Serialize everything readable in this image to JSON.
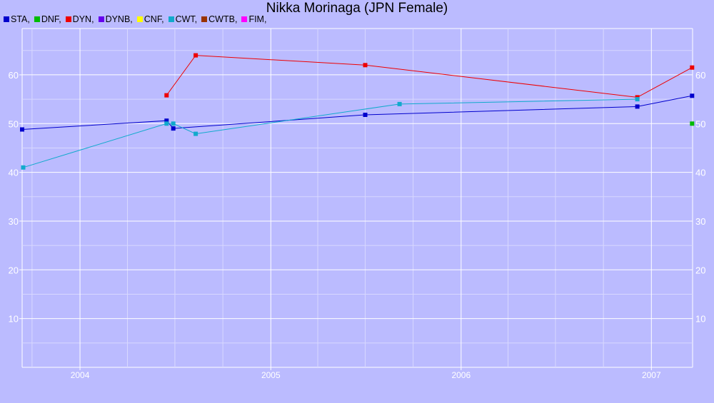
{
  "chart_data": {
    "type": "line",
    "title": "Nikka Morinaga (JPN Female)",
    "xlabel": "",
    "ylabel": "",
    "x_ticks": [
      "2004",
      "2005",
      "2006",
      "2007"
    ],
    "y_ticks": [
      10,
      20,
      30,
      40,
      50,
      60
    ],
    "xlim": [
      "2003-09-12",
      "2007-03-21"
    ],
    "ylim": [
      0,
      69.5
    ],
    "grid": true,
    "legend": [
      {
        "name": "STA",
        "color": "#0000cc"
      },
      {
        "name": "DNF",
        "color": "#00bb00"
      },
      {
        "name": "DYN",
        "color": "#ee0000"
      },
      {
        "name": "DYNB",
        "color": "#6600ee"
      },
      {
        "name": "CNF",
        "color": "#ffff00"
      },
      {
        "name": "CWT",
        "color": "#11aacc"
      },
      {
        "name": "CWTB",
        "color": "#993300"
      },
      {
        "name": "FIM",
        "color": "#ff00ff"
      }
    ],
    "legend_placement": "top-left",
    "series": [
      {
        "name": "STA",
        "color": "#0000cc",
        "points": [
          {
            "x": "2003-09-12",
            "y": 48.8
          },
          {
            "x": "2004-06-15",
            "y": 50.6
          },
          {
            "x": "2004-06-28",
            "y": 49.0
          },
          {
            "x": "2005-07-01",
            "y": 51.8
          },
          {
            "x": "2006-12-05",
            "y": 53.5
          },
          {
            "x": "2007-03-20",
            "y": 55.7
          }
        ]
      },
      {
        "name": "DNF",
        "color": "#00bb00",
        "points": [
          {
            "x": "2007-03-20",
            "y": 50.0
          }
        ]
      },
      {
        "name": "DYN",
        "color": "#ee0000",
        "points": [
          {
            "x": "2004-06-15",
            "y": 55.8
          },
          {
            "x": "2004-08-10",
            "y": 64.0
          },
          {
            "x": "2005-07-01",
            "y": 62.0
          },
          {
            "x": "2006-12-05",
            "y": 55.4
          },
          {
            "x": "2007-03-20",
            "y": 61.5
          }
        ]
      },
      {
        "name": "CWT",
        "color": "#11aacc",
        "points": [
          {
            "x": "2003-09-14",
            "y": 41.0
          },
          {
            "x": "2004-06-15",
            "y": 50.0
          },
          {
            "x": "2004-06-28",
            "y": 50.0
          },
          {
            "x": "2004-08-10",
            "y": 47.9
          },
          {
            "x": "2005-09-05",
            "y": 54.0
          },
          {
            "x": "2006-12-05",
            "y": 55.0
          }
        ]
      }
    ]
  }
}
